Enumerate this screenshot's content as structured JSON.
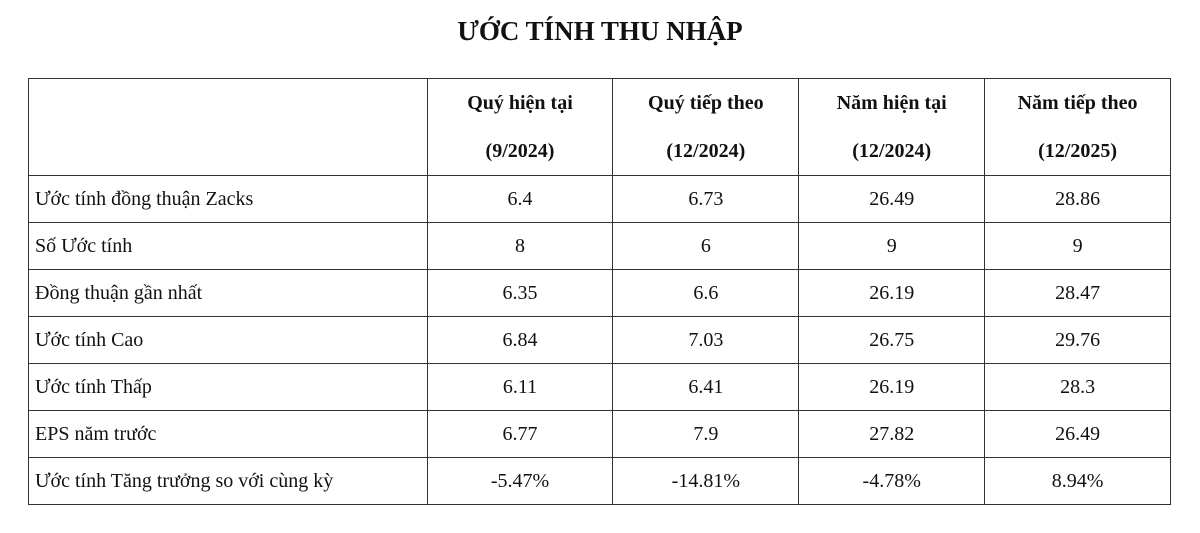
{
  "title": "ƯỚC TÍNH THU NHẬP",
  "table": {
    "columns": [
      {
        "label": "Quý hiện tại",
        "period": "(9/2024)"
      },
      {
        "label": "Quý tiếp theo",
        "period": "(12/2024)"
      },
      {
        "label": "Năm hiện tại",
        "period": "(12/2024)"
      },
      {
        "label": "Năm tiếp theo",
        "period": "(12/2025)"
      }
    ],
    "rows": [
      {
        "label": "Ước tính đồng thuận Zacks",
        "values": [
          "6.4",
          "6.73",
          "26.49",
          "28.86"
        ]
      },
      {
        "label": "Số Ước tính",
        "values": [
          "8",
          "6",
          "9",
          "9"
        ]
      },
      {
        "label": "Đồng thuận gần nhất",
        "values": [
          "6.35",
          "6.6",
          "26.19",
          "28.47"
        ]
      },
      {
        "label": "Ước tính Cao",
        "values": [
          "6.84",
          "7.03",
          "26.75",
          "29.76"
        ]
      },
      {
        "label": "Ước tính Thấp",
        "values": [
          "6.11",
          "6.41",
          "26.19",
          "28.3"
        ]
      },
      {
        "label": "EPS năm trước",
        "values": [
          "6.77",
          "7.9",
          "27.82",
          "26.49"
        ]
      },
      {
        "label": "Ước tính Tăng trưởng so với cùng kỳ",
        "values": [
          "-5.47%",
          "-14.81%",
          "-4.78%",
          "8.94%"
        ]
      }
    ]
  }
}
